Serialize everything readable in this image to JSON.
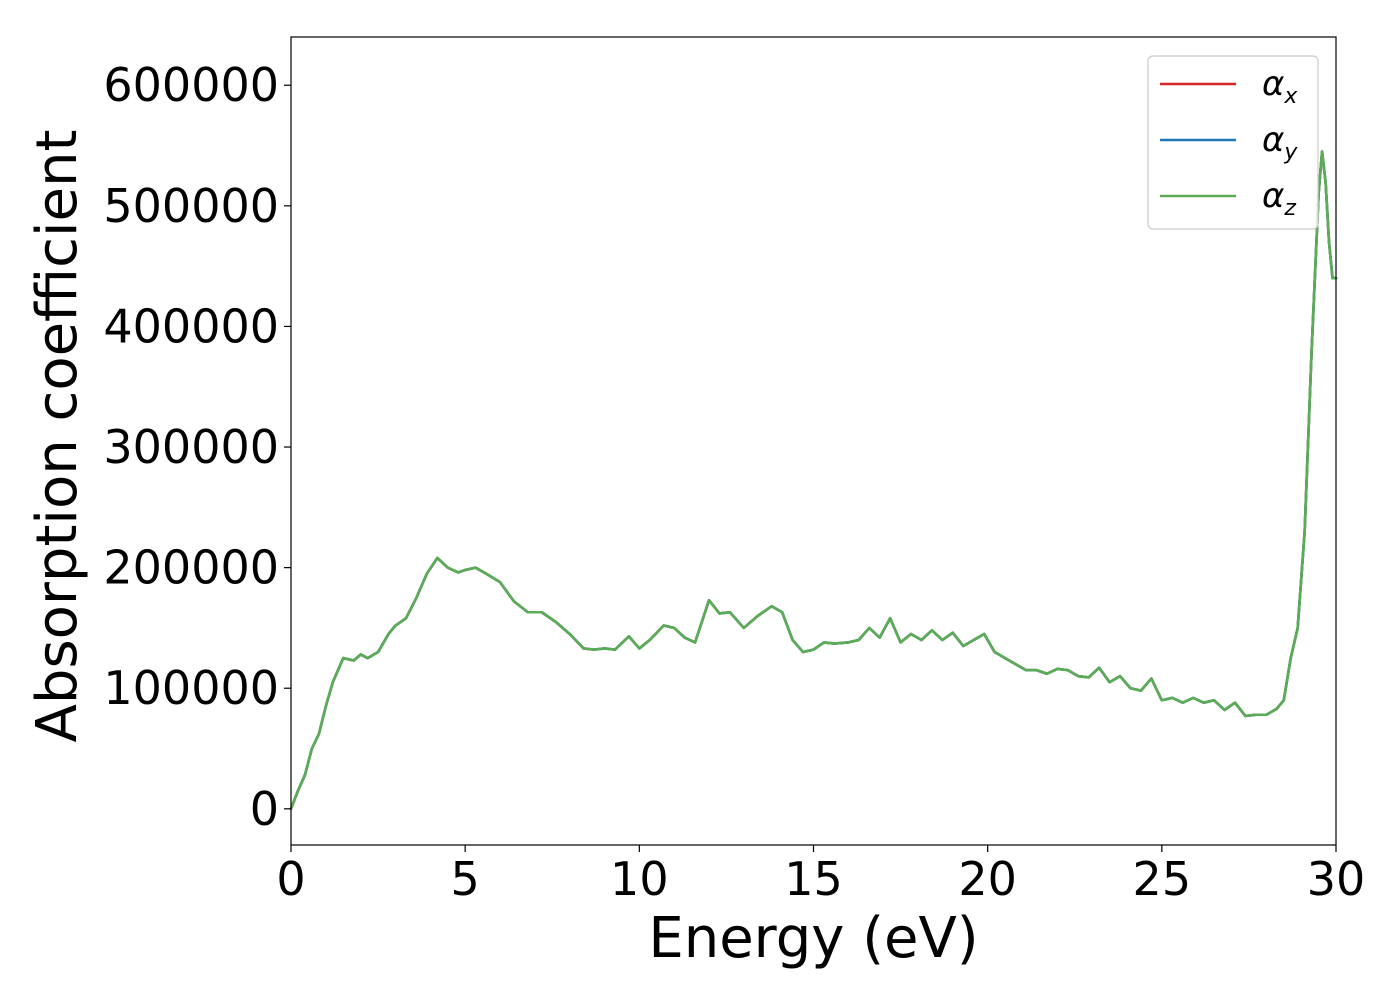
{
  "chart_data": {
    "type": "line",
    "title": "",
    "xlabel": "Energy (eV)",
    "ylabel": "Absorption coefficient",
    "xlim": [
      0,
      30
    ],
    "ylim": [
      -30000,
      640000
    ],
    "xticks": [
      0,
      5,
      10,
      15,
      20,
      25,
      30
    ],
    "xtick_labels": [
      "0",
      "5",
      "10",
      "15",
      "20",
      "25",
      "30"
    ],
    "yticks": [
      0,
      100000,
      200000,
      300000,
      400000,
      500000,
      600000
    ],
    "ytick_labels": [
      "0",
      "100000",
      "200000",
      "300000",
      "400000",
      "500000",
      "600000"
    ],
    "grid": false,
    "legend_position": "top-right",
    "series": [
      {
        "name": "αx",
        "symbol": "α",
        "subscript": "x",
        "color": "#d62728",
        "x": [
          0.0,
          0.2,
          0.4,
          0.6,
          0.8,
          1.0,
          1.2,
          1.5,
          1.8,
          2.0,
          2.2,
          2.5,
          2.8,
          3.0,
          3.3,
          3.6,
          3.9,
          4.2,
          4.5,
          4.8,
          5.0,
          5.3,
          5.6,
          6.0,
          6.4,
          6.8,
          7.2,
          7.6,
          8.0,
          8.4,
          8.7,
          9.0,
          9.3,
          9.7,
          10.0,
          10.3,
          10.7,
          11.0,
          11.3,
          11.6,
          12.0,
          12.3,
          12.6,
          13.0,
          13.4,
          13.8,
          14.1,
          14.4,
          14.7,
          15.0,
          15.3,
          15.6,
          16.0,
          16.3,
          16.6,
          16.9,
          17.2,
          17.5,
          17.8,
          18.1,
          18.4,
          18.7,
          19.0,
          19.3,
          19.6,
          19.9,
          20.2,
          20.5,
          20.8,
          21.1,
          21.4,
          21.7,
          22.0,
          22.3,
          22.6,
          22.9,
          23.2,
          23.5,
          23.8,
          24.1,
          24.4,
          24.7,
          25.0,
          25.3,
          25.6,
          25.9,
          26.2,
          26.5,
          26.8,
          27.1,
          27.4,
          27.7,
          28.0,
          28.3,
          28.5,
          28.7,
          28.9,
          29.1,
          29.3,
          29.5,
          29.6,
          29.7,
          29.8,
          29.9,
          30.0
        ],
        "y": [
          0,
          15000,
          28000,
          50000,
          62000,
          85000,
          105000,
          125000,
          123000,
          128000,
          125000,
          130000,
          145000,
          152000,
          158000,
          175000,
          195000,
          208000,
          200000,
          196000,
          198000,
          200000,
          195000,
          188000,
          172000,
          163000,
          163000,
          155000,
          145000,
          133000,
          132000,
          133000,
          132000,
          143000,
          133000,
          140000,
          152000,
          150000,
          142000,
          138000,
          173000,
          162000,
          163000,
          150000,
          160000,
          168000,
          163000,
          140000,
          130000,
          132000,
          138000,
          137000,
          138000,
          140000,
          150000,
          142000,
          158000,
          138000,
          145000,
          140000,
          148000,
          140000,
          146000,
          135000,
          140000,
          145000,
          130000,
          125000,
          120000,
          115000,
          115000,
          112000,
          116000,
          115000,
          110000,
          109000,
          117000,
          105000,
          110000,
          100000,
          98000,
          108000,
          90000,
          92000,
          88000,
          92000,
          88000,
          90000,
          82000,
          88000,
          77000,
          78000,
          78000,
          83000,
          90000,
          125000,
          150000,
          230000,
          380000,
          510000,
          545000,
          520000,
          470000,
          440000,
          440000
        ]
      },
      {
        "name": "αy",
        "symbol": "α",
        "subscript": "y",
        "color": "#1f77b4",
        "x": [
          0.0,
          0.2,
          0.4,
          0.6,
          0.8,
          1.0,
          1.2,
          1.5,
          1.8,
          2.0,
          2.2,
          2.5,
          2.8,
          3.0,
          3.3,
          3.6,
          3.9,
          4.2,
          4.5,
          4.8,
          5.0,
          5.3,
          5.6,
          6.0,
          6.4,
          6.8,
          7.2,
          7.6,
          8.0,
          8.4,
          8.7,
          9.0,
          9.3,
          9.7,
          10.0,
          10.3,
          10.7,
          11.0,
          11.3,
          11.6,
          12.0,
          12.3,
          12.6,
          13.0,
          13.4,
          13.8,
          14.1,
          14.4,
          14.7,
          15.0,
          15.3,
          15.6,
          16.0,
          16.3,
          16.6,
          16.9,
          17.2,
          17.5,
          17.8,
          18.1,
          18.4,
          18.7,
          19.0,
          19.3,
          19.6,
          19.9,
          20.2,
          20.5,
          20.8,
          21.1,
          21.4,
          21.7,
          22.0,
          22.3,
          22.6,
          22.9,
          23.2,
          23.5,
          23.8,
          24.1,
          24.4,
          24.7,
          25.0,
          25.3,
          25.6,
          25.9,
          26.2,
          26.5,
          26.8,
          27.1,
          27.4,
          27.7,
          28.0,
          28.3,
          28.5,
          28.7,
          28.9,
          29.1,
          29.3,
          29.5,
          29.6,
          29.7,
          29.8,
          29.9,
          30.0
        ],
        "y": [
          0,
          15000,
          28000,
          50000,
          62000,
          85000,
          105000,
          125000,
          123000,
          128000,
          125000,
          130000,
          145000,
          152000,
          158000,
          175000,
          195000,
          208000,
          200000,
          196000,
          198000,
          200000,
          195000,
          188000,
          172000,
          163000,
          163000,
          155000,
          145000,
          133000,
          132000,
          133000,
          132000,
          143000,
          133000,
          140000,
          152000,
          150000,
          142000,
          138000,
          173000,
          162000,
          163000,
          150000,
          160000,
          168000,
          163000,
          140000,
          130000,
          132000,
          138000,
          137000,
          138000,
          140000,
          150000,
          142000,
          158000,
          138000,
          145000,
          140000,
          148000,
          140000,
          146000,
          135000,
          140000,
          145000,
          130000,
          125000,
          120000,
          115000,
          115000,
          112000,
          116000,
          115000,
          110000,
          109000,
          117000,
          105000,
          110000,
          100000,
          98000,
          108000,
          90000,
          92000,
          88000,
          92000,
          88000,
          90000,
          82000,
          88000,
          77000,
          78000,
          78000,
          83000,
          90000,
          125000,
          150000,
          230000,
          380000,
          510000,
          545000,
          520000,
          470000,
          440000,
          440000
        ]
      },
      {
        "name": "αz",
        "symbol": "α",
        "subscript": "z",
        "color": "#5aad55",
        "x": [
          0.0,
          0.2,
          0.4,
          0.6,
          0.8,
          1.0,
          1.2,
          1.5,
          1.8,
          2.0,
          2.2,
          2.5,
          2.8,
          3.0,
          3.3,
          3.6,
          3.9,
          4.2,
          4.5,
          4.8,
          5.0,
          5.3,
          5.6,
          6.0,
          6.4,
          6.8,
          7.2,
          7.6,
          8.0,
          8.4,
          8.7,
          9.0,
          9.3,
          9.7,
          10.0,
          10.3,
          10.7,
          11.0,
          11.3,
          11.6,
          12.0,
          12.3,
          12.6,
          13.0,
          13.4,
          13.8,
          14.1,
          14.4,
          14.7,
          15.0,
          15.3,
          15.6,
          16.0,
          16.3,
          16.6,
          16.9,
          17.2,
          17.5,
          17.8,
          18.1,
          18.4,
          18.7,
          19.0,
          19.3,
          19.6,
          19.9,
          20.2,
          20.5,
          20.8,
          21.1,
          21.4,
          21.7,
          22.0,
          22.3,
          22.6,
          22.9,
          23.2,
          23.5,
          23.8,
          24.1,
          24.4,
          24.7,
          25.0,
          25.3,
          25.6,
          25.9,
          26.2,
          26.5,
          26.8,
          27.1,
          27.4,
          27.7,
          28.0,
          28.3,
          28.5,
          28.7,
          28.9,
          29.1,
          29.3,
          29.5,
          29.6,
          29.7,
          29.8,
          29.9,
          30.0
        ],
        "y": [
          0,
          15000,
          28000,
          50000,
          62000,
          85000,
          105000,
          125000,
          123000,
          128000,
          125000,
          130000,
          145000,
          152000,
          158000,
          175000,
          195000,
          208000,
          200000,
          196000,
          198000,
          200000,
          195000,
          188000,
          172000,
          163000,
          163000,
          155000,
          145000,
          133000,
          132000,
          133000,
          132000,
          143000,
          133000,
          140000,
          152000,
          150000,
          142000,
          138000,
          173000,
          162000,
          163000,
          150000,
          160000,
          168000,
          163000,
          140000,
          130000,
          132000,
          138000,
          137000,
          138000,
          140000,
          150000,
          142000,
          158000,
          138000,
          145000,
          140000,
          148000,
          140000,
          146000,
          135000,
          140000,
          145000,
          130000,
          125000,
          120000,
          115000,
          115000,
          112000,
          116000,
          115000,
          110000,
          109000,
          117000,
          105000,
          110000,
          100000,
          98000,
          108000,
          90000,
          92000,
          88000,
          92000,
          88000,
          90000,
          82000,
          88000,
          77000,
          78000,
          78000,
          83000,
          90000,
          125000,
          150000,
          230000,
          380000,
          510000,
          545000,
          520000,
          470000,
          440000,
          440000
        ]
      }
    ]
  }
}
